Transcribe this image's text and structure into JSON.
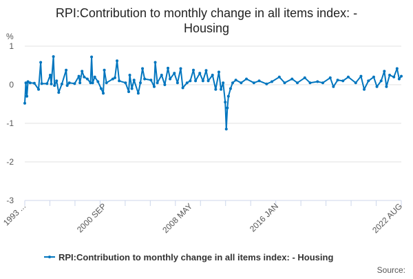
{
  "chart_data": {
    "type": "line",
    "title_line1": "RPI:Contribution to monthly change in all items index: -",
    "title_line2": "Housing",
    "ylabel": "%",
    "ylim": [
      -3,
      1
    ],
    "yticks": [
      "1",
      "0",
      "-1",
      "-2",
      "-3"
    ],
    "xtick_labels": [
      "1993 ...",
      "2000 SEP",
      "2008 MAY",
      "2016 JAN",
      "2022 AUG"
    ],
    "grid": "horizontal",
    "legend_position": "bottom",
    "color": "#0075be",
    "series": [
      {
        "name": "RPI:Contribution to monthly change in all items index: - Housing",
        "x": [
          "1993-01",
          "1993-02",
          "1993-03",
          "1993-04",
          "1993-06",
          "1993-10",
          "1994-02",
          "1994-04",
          "1994-05",
          "1994-10",
          "1995-01",
          "1995-02",
          "1995-04",
          "1995-05",
          "1995-07",
          "1995-09",
          "1995-12",
          "1996-04",
          "1996-05",
          "1996-07",
          "1996-12",
          "1997-04",
          "1997-05",
          "1997-07",
          "1997-09",
          "1997-12",
          "1998-03",
          "1998-04",
          "1998-05",
          "1998-07",
          "1998-10",
          "1999-01",
          "1999-03",
          "1999-04",
          "1999-06",
          "1999-12",
          "2000-02",
          "2000-04",
          "2000-06",
          "2000-12",
          "2001-03",
          "2001-04",
          "2001-06",
          "2001-08",
          "2001-12",
          "2002-02",
          "2002-04",
          "2002-06",
          "2002-12",
          "2003-03",
          "2003-04",
          "2003-06",
          "2003-10",
          "2004-01",
          "2004-04",
          "2004-06",
          "2004-10",
          "2005-01",
          "2005-04",
          "2005-06",
          "2005-10",
          "2006-01",
          "2006-04",
          "2006-06",
          "2006-10",
          "2007-01",
          "2007-04",
          "2007-06",
          "2007-10",
          "2008-01",
          "2008-04",
          "2008-06",
          "2008-08",
          "2008-10",
          "2008-11",
          "2008-12",
          "2009-01",
          "2009-03",
          "2009-05",
          "2009-08",
          "2010-01",
          "2010-06",
          "2011-01",
          "2011-06",
          "2012-01",
          "2012-06",
          "2013-01",
          "2013-06",
          "2014-01",
          "2014-06",
          "2015-01",
          "2015-06",
          "2016-01",
          "2016-06",
          "2017-01",
          "2017-04",
          "2017-08",
          "2018-01",
          "2018-06",
          "2019-01",
          "2019-06",
          "2019-09",
          "2020-01",
          "2020-06",
          "2020-09",
          "2021-01",
          "2021-04",
          "2021-06",
          "2021-09",
          "2022-01",
          "2022-04",
          "2022-06",
          "2022-08"
        ],
        "values": [
          -0.48,
          0.05,
          -0.3,
          0.08,
          0.05,
          0.04,
          -0.12,
          0.58,
          0.03,
          0.03,
          0.25,
          0.02,
          0.73,
          -0.02,
          0.1,
          -0.2,
          0.02,
          0.38,
          -0.02,
          0.05,
          0.03,
          0.22,
          0.05,
          0.35,
          0.2,
          0.15,
          0.05,
          0.72,
          0.05,
          0.2,
          0.08,
          -0.1,
          -0.22,
          0.38,
          0.05,
          0.15,
          0.18,
          0.62,
          0.1,
          0.05,
          -0.18,
          0.25,
          -0.1,
          0.12,
          -0.22,
          0.05,
          0.42,
          0.15,
          0.12,
          -0.05,
          0.58,
          0.05,
          0.25,
          0.0,
          0.43,
          0.15,
          0.3,
          0.05,
          0.42,
          -0.08,
          0.05,
          0.1,
          0.38,
          0.1,
          0.3,
          0.1,
          0.37,
          0.1,
          0.25,
          -0.12,
          0.33,
          -0.12,
          0.05,
          -0.45,
          -1.15,
          -0.6,
          -0.3,
          -0.1,
          0.05,
          0.12,
          0.05,
          0.15,
          0.05,
          0.1,
          0.02,
          0.08,
          0.2,
          0.05,
          0.15,
          0.05,
          0.18,
          0.05,
          0.08,
          0.05,
          0.18,
          -0.05,
          0.12,
          0.1,
          0.2,
          0.05,
          0.22,
          -0.12,
          0.1,
          0.2,
          -0.05,
          0.1,
          0.35,
          -0.05,
          0.25,
          0.2,
          0.42,
          0.15,
          0.22
        ]
      }
    ]
  },
  "source_label": "Source:"
}
